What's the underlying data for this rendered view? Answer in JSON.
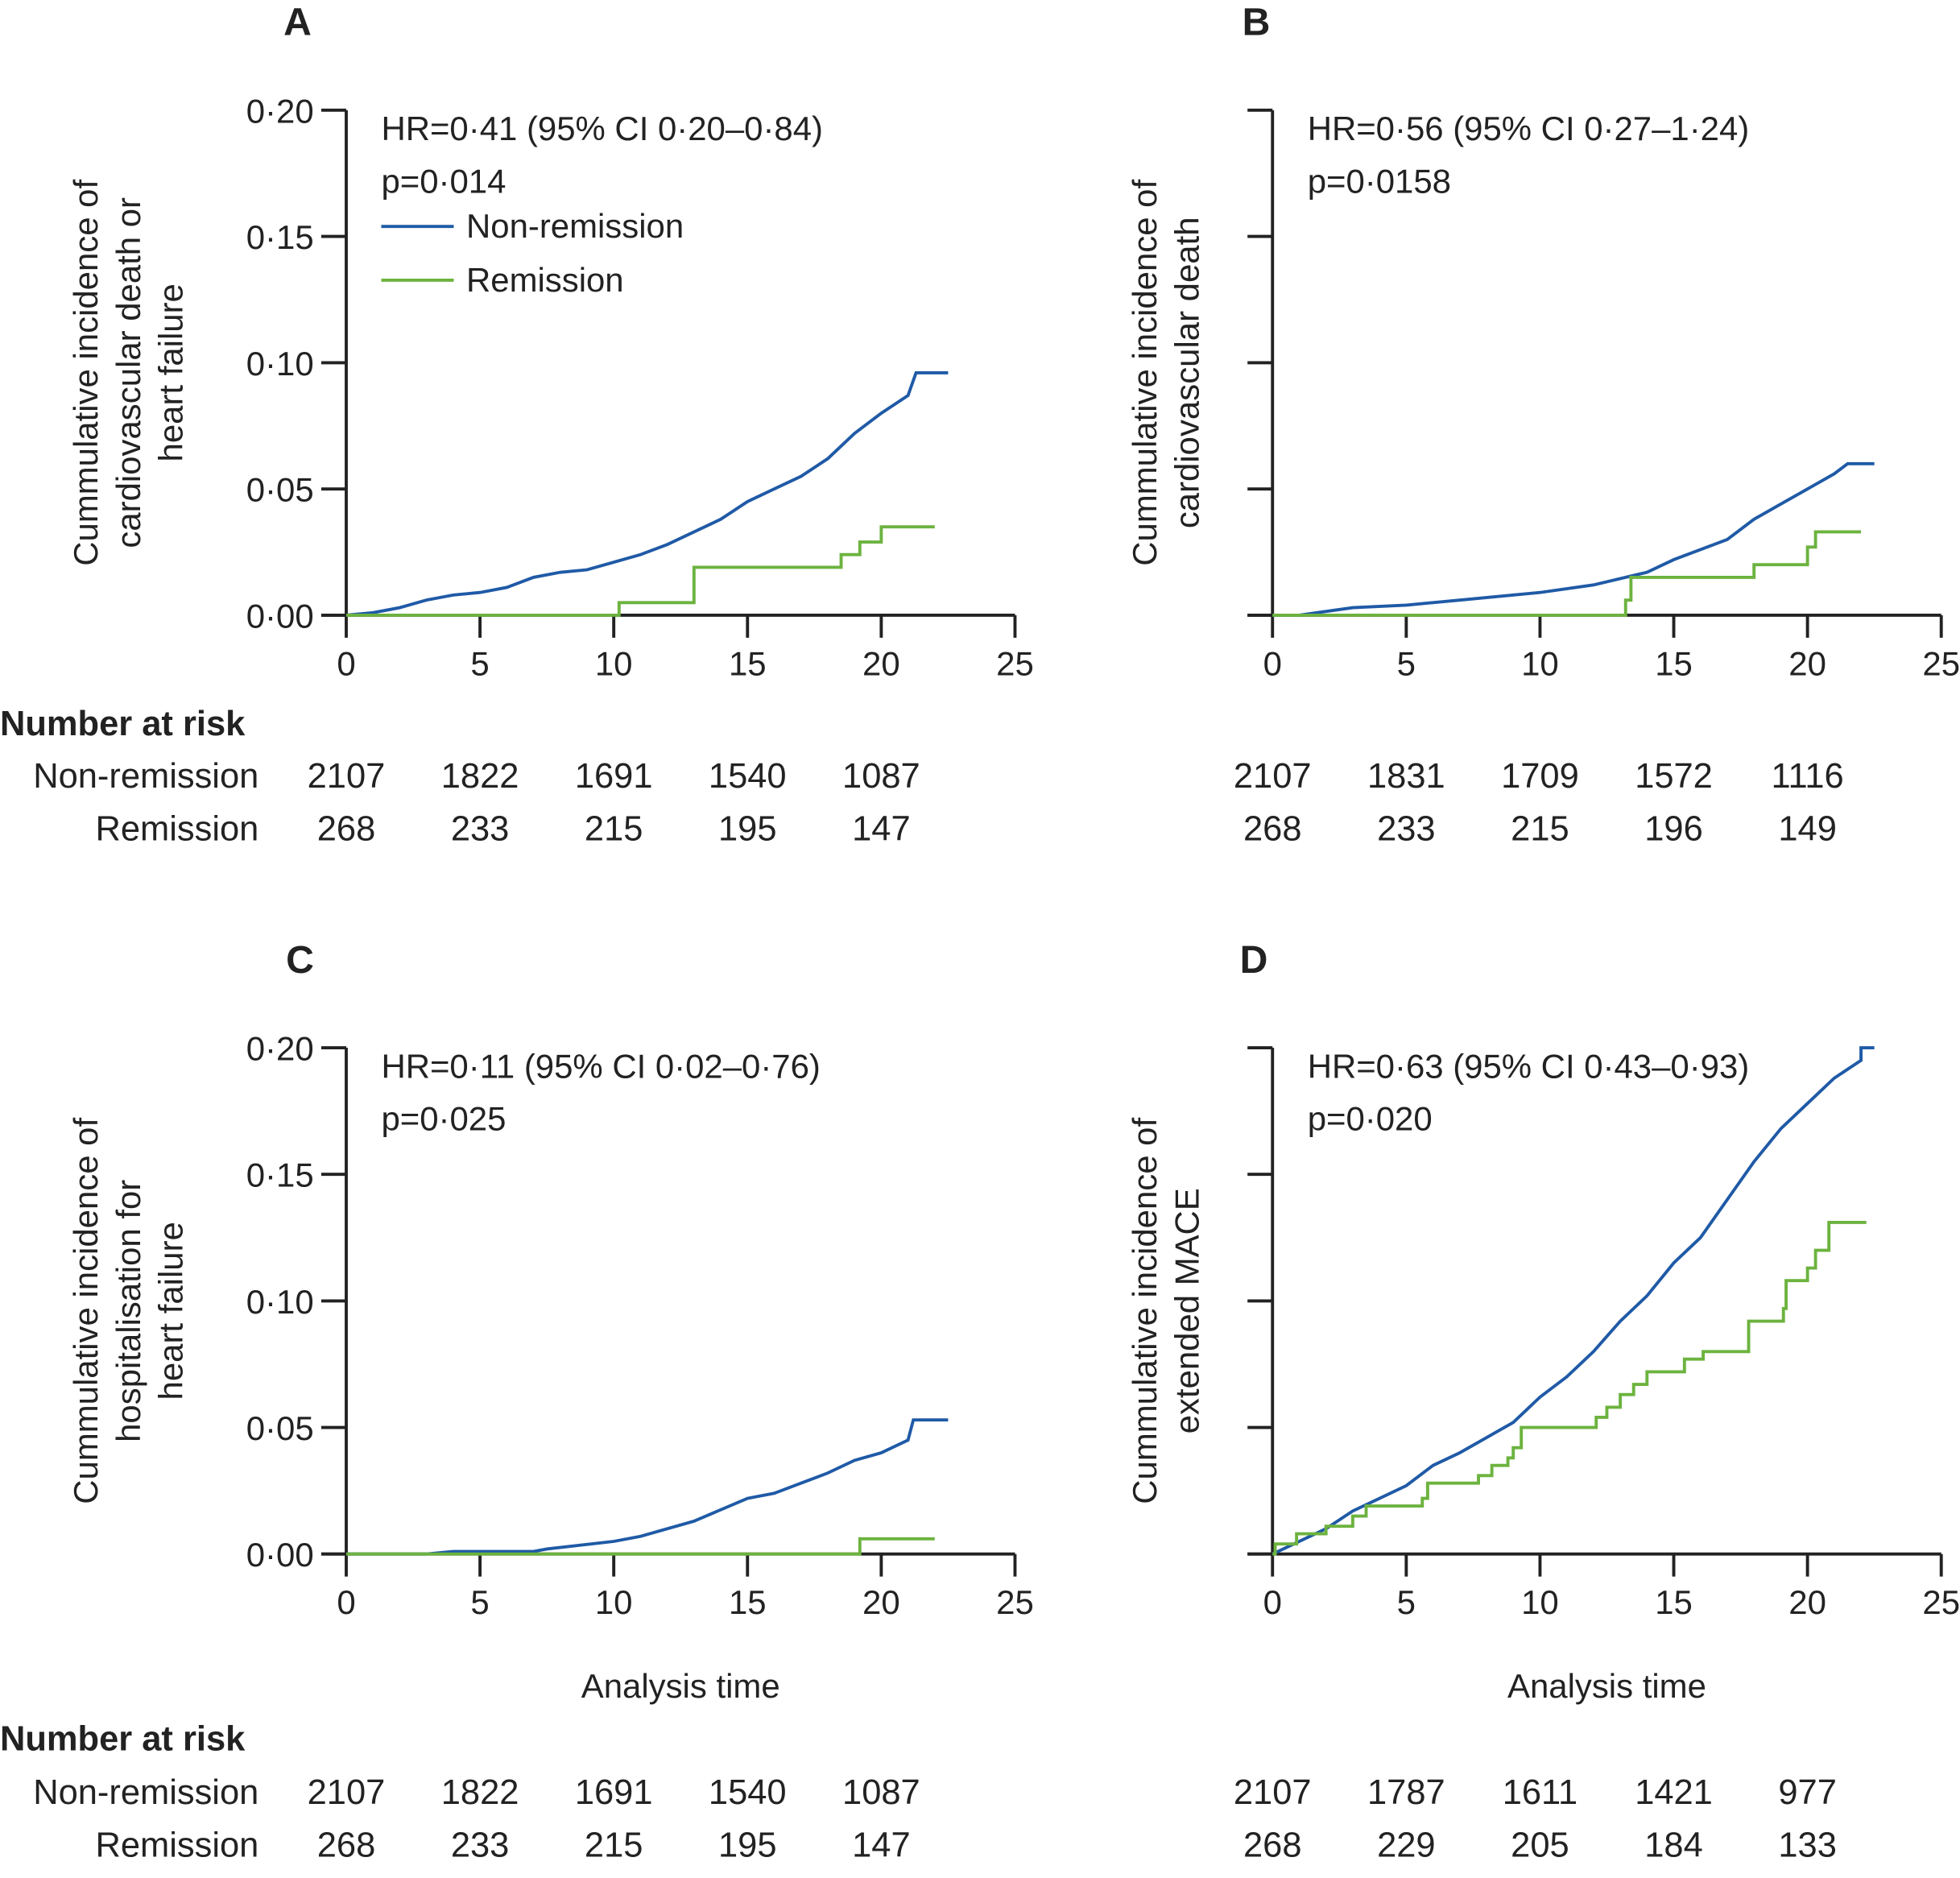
{
  "colors": {
    "non_remission": "#1f5aa6",
    "remission": "#6cb33f",
    "axis": "#222222"
  },
  "risk_header": "Number at risk",
  "xlabel": "Analysis time",
  "chart_data": [
    {
      "panel": "A",
      "type": "line",
      "ylabel": [
        "Cummulative incidence of",
        "cardiovascular death or",
        "heart failure"
      ],
      "hr": "HR=0·41 (95% CI 0·20–0·84)",
      "p": "p=0·014",
      "legend": [
        "Non-remission",
        "Remission"
      ],
      "legend_position": "top-left",
      "xlim": [
        0,
        25
      ],
      "ylim": [
        0,
        0.2
      ],
      "xticks": [
        "0",
        "5",
        "10",
        "15",
        "20",
        "25"
      ],
      "yticks": [
        "0·00",
        "0·05",
        "0·10",
        "0·15",
        "0·20"
      ],
      "xlabel": "",
      "risk": {
        "Non-remission": [
          "2107",
          "1822",
          "1691",
          "1540",
          "1087"
        ],
        "Remission": [
          "268",
          "233",
          "215",
          "195",
          "147"
        ]
      },
      "series": [
        {
          "name": "Non-remission",
          "step": false,
          "points": [
            [
              0,
              0
            ],
            [
              1,
              0.001
            ],
            [
              2,
              0.003
            ],
            [
              3,
              0.006
            ],
            [
              4,
              0.008
            ],
            [
              5,
              0.009
            ],
            [
              6,
              0.011
            ],
            [
              7,
              0.015
            ],
            [
              8,
              0.017
            ],
            [
              9,
              0.018
            ],
            [
              10,
              0.021
            ],
            [
              11,
              0.024
            ],
            [
              12,
              0.028
            ],
            [
              13,
              0.033
            ],
            [
              14,
              0.038
            ],
            [
              15,
              0.045
            ],
            [
              16,
              0.05
            ],
            [
              17,
              0.055
            ],
            [
              18,
              0.062
            ],
            [
              19,
              0.072
            ],
            [
              20,
              0.08
            ],
            [
              21,
              0.087
            ],
            [
              21.3,
              0.096
            ],
            [
              22.5,
              0.096
            ]
          ]
        },
        {
          "name": "Remission",
          "step": true,
          "points": [
            [
              0,
              0
            ],
            [
              10.2,
              0.005
            ],
            [
              13,
              0.019
            ],
            [
              18.5,
              0.024
            ],
            [
              19.2,
              0.029
            ],
            [
              20,
              0.035
            ],
            [
              22,
              0.035
            ]
          ]
        }
      ]
    },
    {
      "panel": "B",
      "type": "line",
      "ylabel": [
        "Cummulative incidence of",
        "cardiovascular death"
      ],
      "hr": "HR=0·56 (95% CI 0·27–1·24)",
      "p": "p=0·0158",
      "legend": [],
      "xlim": [
        0,
        25
      ],
      "ylim": [
        0,
        0.2
      ],
      "xticks": [
        "0",
        "5",
        "10",
        "15",
        "20",
        "25"
      ],
      "yticks": [
        "",
        "",
        "",
        "",
        ""
      ],
      "xlabel": "",
      "risk": {
        "Non-remission": [
          "2107",
          "1831",
          "1709",
          "1572",
          "1116"
        ],
        "Remission": [
          "268",
          "233",
          "215",
          "196",
          "149"
        ]
      },
      "series": [
        {
          "name": "Non-remission",
          "step": false,
          "points": [
            [
              0,
              0
            ],
            [
              1,
              0
            ],
            [
              3,
              0.003
            ],
            [
              5,
              0.004
            ],
            [
              7,
              0.006
            ],
            [
              10,
              0.009
            ],
            [
              12,
              0.012
            ],
            [
              14,
              0.017
            ],
            [
              15,
              0.022
            ],
            [
              16,
              0.026
            ],
            [
              17,
              0.03
            ],
            [
              18,
              0.038
            ],
            [
              19,
              0.044
            ],
            [
              20,
              0.05
            ],
            [
              21,
              0.056
            ],
            [
              21.5,
              0.06
            ],
            [
              22.5,
              0.06
            ]
          ]
        },
        {
          "name": "Remission",
          "step": true,
          "points": [
            [
              0,
              0
            ],
            [
              13.2,
              0.006
            ],
            [
              13.4,
              0.015
            ],
            [
              18,
              0.02
            ],
            [
              20,
              0.027
            ],
            [
              20.3,
              0.033
            ],
            [
              22,
              0.033
            ]
          ]
        }
      ]
    },
    {
      "panel": "C",
      "type": "line",
      "ylabel": [
        "Cummulative incidence of",
        "hospitalisation for",
        "heart failure"
      ],
      "hr": "HR=0·11 (95% CI 0·02–0·76)",
      "p": "p=0·025",
      "legend": [],
      "xlim": [
        0,
        25
      ],
      "ylim": [
        0,
        0.2
      ],
      "xticks": [
        "0",
        "5",
        "10",
        "15",
        "20",
        "25"
      ],
      "yticks": [
        "0·00",
        "0·05",
        "0·10",
        "0·15",
        "0·20"
      ],
      "xlabel": "Analysis time",
      "risk": {
        "Non-remission": [
          "2107",
          "1822",
          "1691",
          "1540",
          "1087"
        ],
        "Remission": [
          "268",
          "233",
          "215",
          "195",
          "147"
        ]
      },
      "series": [
        {
          "name": "Non-remission",
          "step": false,
          "points": [
            [
              0,
              0
            ],
            [
              3,
              0
            ],
            [
              4,
              0.001
            ],
            [
              7,
              0.001
            ],
            [
              7.5,
              0.002
            ],
            [
              10,
              0.005
            ],
            [
              11,
              0.007
            ],
            [
              13,
              0.013
            ],
            [
              15,
              0.022
            ],
            [
              16,
              0.024
            ],
            [
              17,
              0.028
            ],
            [
              18,
              0.032
            ],
            [
              19,
              0.037
            ],
            [
              20,
              0.04
            ],
            [
              21,
              0.045
            ],
            [
              21.2,
              0.053
            ],
            [
              22.5,
              0.053
            ]
          ]
        },
        {
          "name": "Remission",
          "step": true,
          "points": [
            [
              0,
              0
            ],
            [
              19.2,
              0.006
            ],
            [
              22,
              0.006
            ]
          ]
        }
      ]
    },
    {
      "panel": "D",
      "type": "line",
      "ylabel": [
        "Cummulative incidence of",
        "extended MACE"
      ],
      "hr": "HR=0·63 (95% CI 0·43–0·93)",
      "p": "p=0·020",
      "legend": [],
      "xlim": [
        0,
        25
      ],
      "ylim": [
        0,
        0.2
      ],
      "xticks": [
        "0",
        "5",
        "10",
        "15",
        "20",
        "25"
      ],
      "yticks": [
        "",
        "",
        "",
        "",
        ""
      ],
      "xlabel": "Analysis time",
      "risk": {
        "Non-remission": [
          "2107",
          "1787",
          "1611",
          "1421",
          "977"
        ],
        "Remission": [
          "268",
          "229",
          "205",
          "184",
          "133"
        ]
      },
      "series": [
        {
          "name": "Non-remission",
          "step": false,
          "points": [
            [
              0,
              0
            ],
            [
              2,
              0.01
            ],
            [
              3,
              0.017
            ],
            [
              4,
              0.022
            ],
            [
              5,
              0.027
            ],
            [
              6,
              0.035
            ],
            [
              7,
              0.04
            ],
            [
              8,
              0.046
            ],
            [
              9,
              0.052
            ],
            [
              10,
              0.062
            ],
            [
              11,
              0.07
            ],
            [
              12,
              0.08
            ],
            [
              13,
              0.092
            ],
            [
              14,
              0.102
            ],
            [
              15,
              0.115
            ],
            [
              16,
              0.125
            ],
            [
              17,
              0.14
            ],
            [
              18,
              0.155
            ],
            [
              19,
              0.168
            ],
            [
              20,
              0.178
            ],
            [
              21,
              0.188
            ],
            [
              22,
              0.195
            ],
            [
              22,
              0.2
            ],
            [
              22.5,
              0.2
            ]
          ]
        },
        {
          "name": "Remission",
          "step": true,
          "points": [
            [
              0,
              0
            ],
            [
              0.1,
              0.004
            ],
            [
              0.9,
              0.008
            ],
            [
              2,
              0.011
            ],
            [
              3,
              0.015
            ],
            [
              3.5,
              0.019
            ],
            [
              5.6,
              0.022
            ],
            [
              5.8,
              0.028
            ],
            [
              7.7,
              0.031
            ],
            [
              8.2,
              0.035
            ],
            [
              8.8,
              0.038
            ],
            [
              9,
              0.042
            ],
            [
              9.3,
              0.05
            ],
            [
              12.1,
              0.054
            ],
            [
              12.5,
              0.058
            ],
            [
              13,
              0.063
            ],
            [
              13.5,
              0.067
            ],
            [
              14,
              0.072
            ],
            [
              15.4,
              0.077
            ],
            [
              16.1,
              0.08
            ],
            [
              17.8,
              0.092
            ],
            [
              19.1,
              0.097
            ],
            [
              19.2,
              0.108
            ],
            [
              20,
              0.113
            ],
            [
              20.3,
              0.12
            ],
            [
              20.8,
              0.131
            ],
            [
              22.2,
              0.131
            ]
          ]
        }
      ]
    }
  ]
}
